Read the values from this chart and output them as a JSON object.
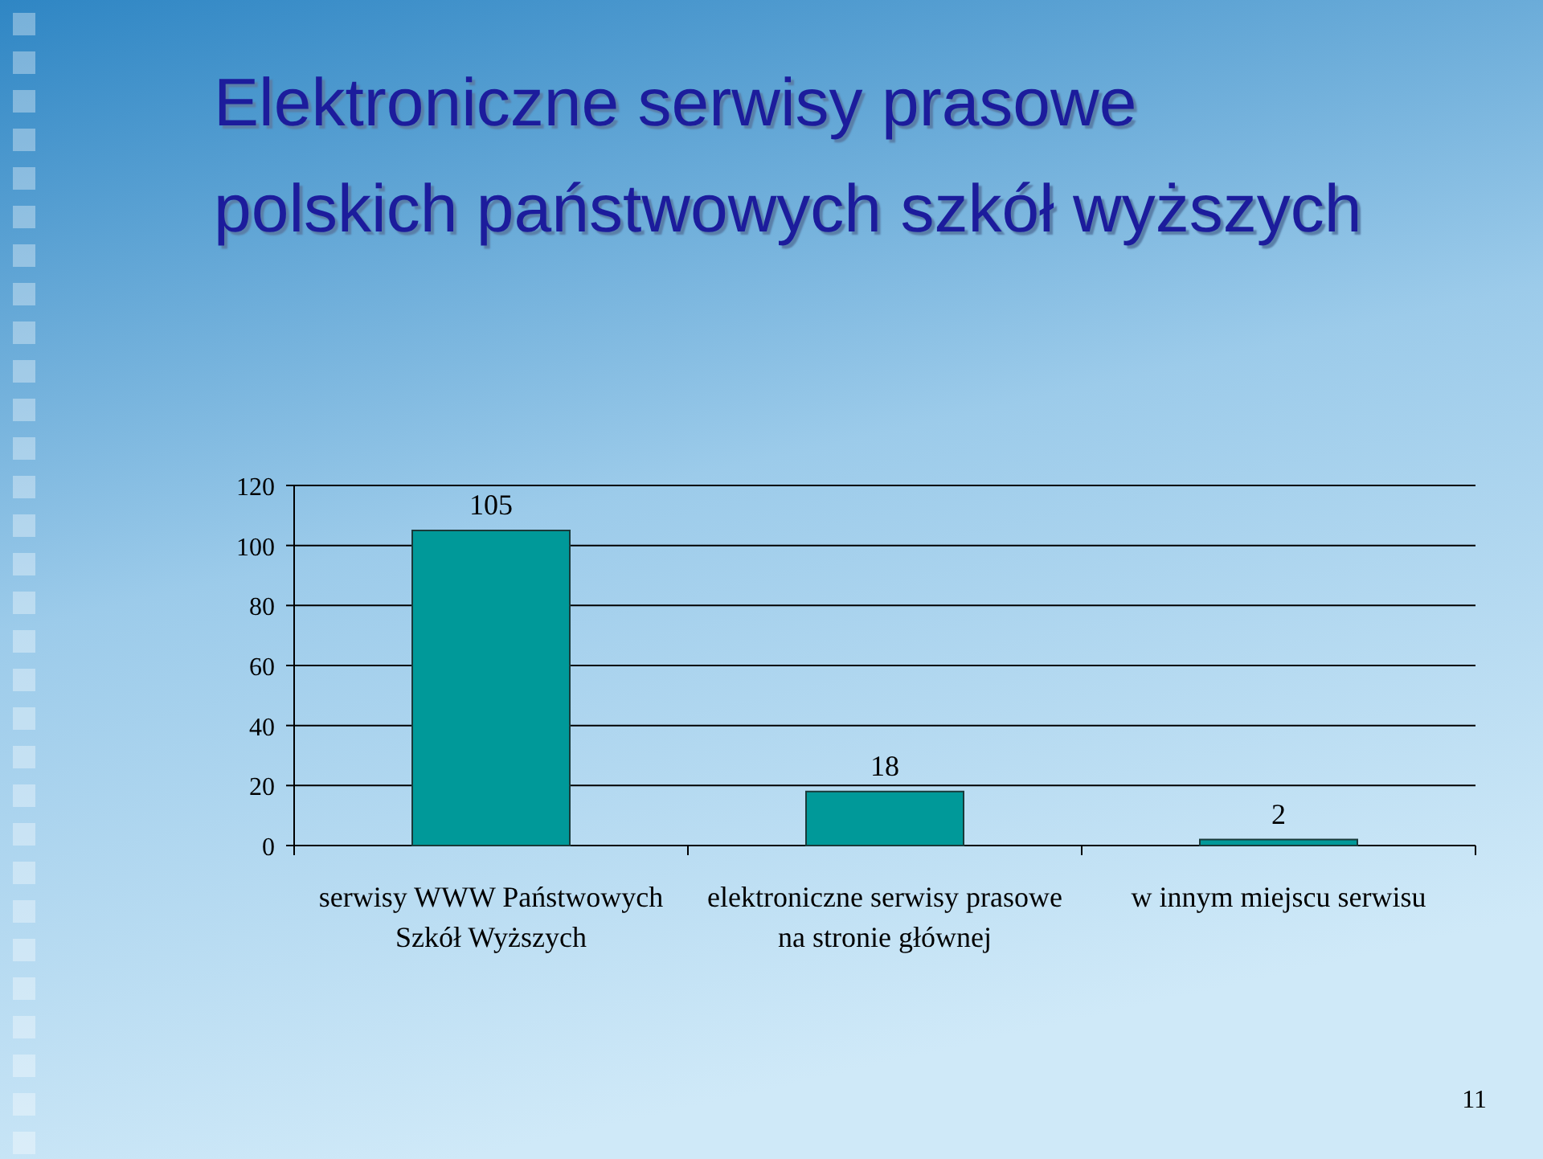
{
  "chart_data": {
    "type": "bar",
    "title": "Elektroniczne serwisy prasowe polskich państwowych szkół wyższych",
    "categories": [
      "serwisy WWW Państwowych Szkół Wyższych",
      "elektroniczne serwisy prasowe na stronie głównej",
      "w innym miejscu serwisu"
    ],
    "values": [
      105,
      18,
      2
    ],
    "color": "#009999",
    "ylim": [
      0,
      120
    ],
    "yticks": [
      0,
      20,
      40,
      60,
      80,
      100,
      120
    ],
    "grid": "y",
    "data_labels": true,
    "annotations": [
      "11"
    ]
  }
}
